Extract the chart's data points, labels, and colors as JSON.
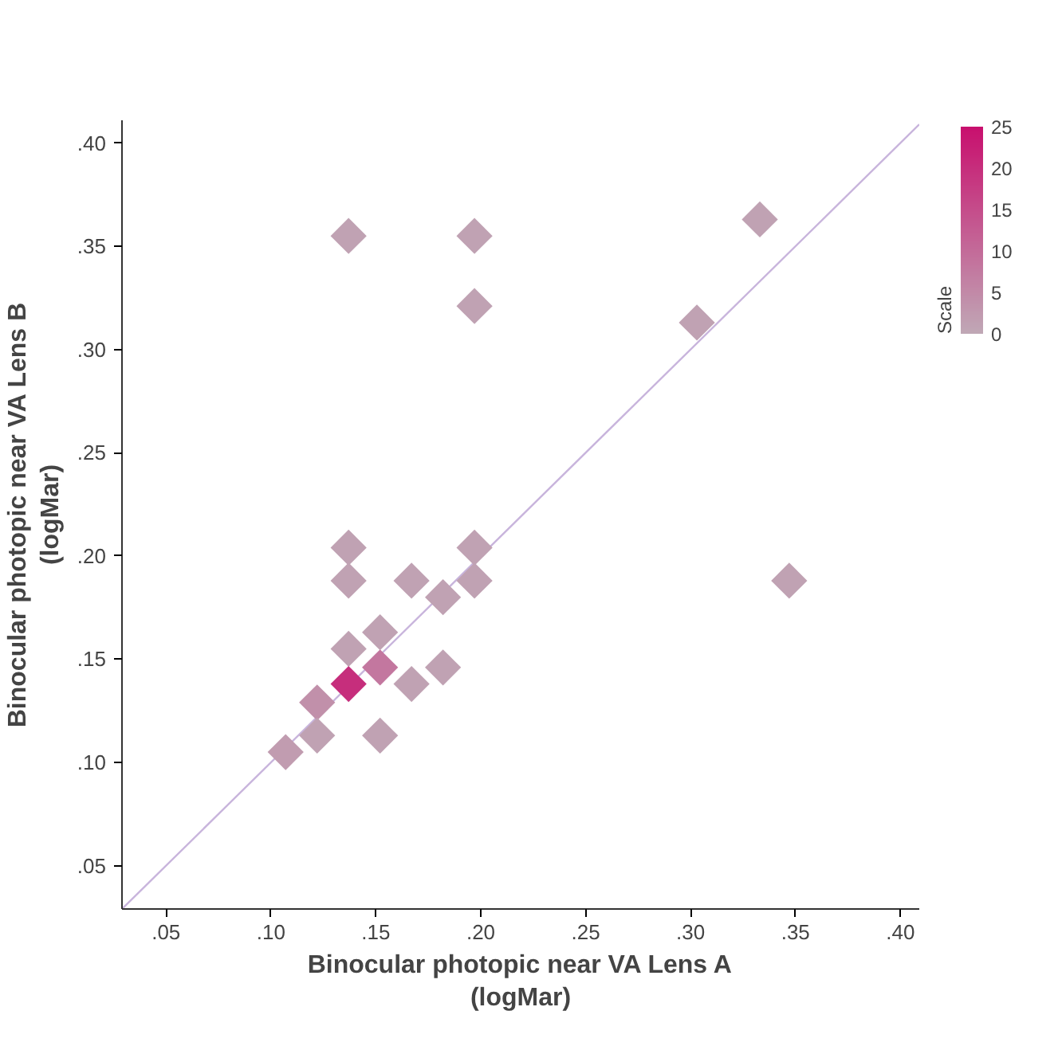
{
  "chart_data": {
    "type": "scatter",
    "xlabel": "Binocular photopic near VA Lens A\n(logMar)",
    "ylabel": "Binocular photopic near VA Lens B\n(logMar)",
    "clabel": "Scale",
    "clim": [
      0,
      25
    ],
    "cticks": [
      25,
      20,
      15,
      10,
      5,
      0
    ],
    "grid": false,
    "xlim": [
      0.029,
      0.409
    ],
    "ylim": [
      0.029,
      0.411
    ],
    "xticks": [
      {
        "value": 0.05,
        "label": ".05"
      },
      {
        "value": 0.1,
        "label": ".10"
      },
      {
        "value": 0.15,
        "label": ".15"
      },
      {
        "value": 0.2,
        "label": ".20"
      },
      {
        "value": 0.25,
        "label": ".25"
      },
      {
        "value": 0.3,
        "label": ".30"
      },
      {
        "value": 0.35,
        "label": ".35"
      },
      {
        "value": 0.4,
        "label": ".40"
      }
    ],
    "yticks": [
      {
        "value": 0.05,
        "label": ".05"
      },
      {
        "value": 0.1,
        "label": ".10"
      },
      {
        "value": 0.15,
        "label": ".15"
      },
      {
        "value": 0.2,
        "label": ".20"
      },
      {
        "value": 0.25,
        "label": ".25"
      },
      {
        "value": 0.3,
        "label": ".30"
      },
      {
        "value": 0.35,
        "label": ".35"
      },
      {
        "value": 0.4,
        "label": ".40"
      }
    ],
    "series": [
      {
        "type": "line",
        "color": "#c8b4dc",
        "x": [
          0.029,
          0.409
        ],
        "values": [
          0.029,
          0.409
        ]
      },
      {
        "marker": "diamond",
        "x": [
          0.137,
          0.197,
          0.197,
          0.333,
          0.303,
          0.137,
          0.197,
          0.137,
          0.167,
          0.197,
          0.182,
          0.347,
          0.137,
          0.152,
          0.152,
          0.182,
          0.137,
          0.167,
          0.122,
          0.122,
          0.152,
          0.107
        ],
        "values": [
          0.355,
          0.355,
          0.321,
          0.363,
          0.313,
          0.204,
          0.204,
          0.188,
          0.188,
          0.188,
          0.18,
          0.188,
          0.155,
          0.163,
          0.146,
          0.146,
          0.138,
          0.138,
          0.129,
          0.113,
          0.113,
          0.105
        ],
        "colors": [
          "#c0a2b3",
          "#c0a2b3",
          "#c0a2b3",
          "#c0a2b3",
          "#c0a2b3",
          "#c0a2b3",
          "#c0a2b3",
          "#c0a2b3",
          "#c0a2b3",
          "#c0a2b3",
          "#c0a2b3",
          "#c0a2b3",
          "#c0a2b3",
          "#c0a2b3",
          "#c3779f",
          "#c0a2b3",
          "#c62e7c",
          "#c0a2b3",
          "#c190aa",
          "#c0a2b3",
          "#c0a2b3",
          "#c19cb0"
        ]
      }
    ]
  }
}
